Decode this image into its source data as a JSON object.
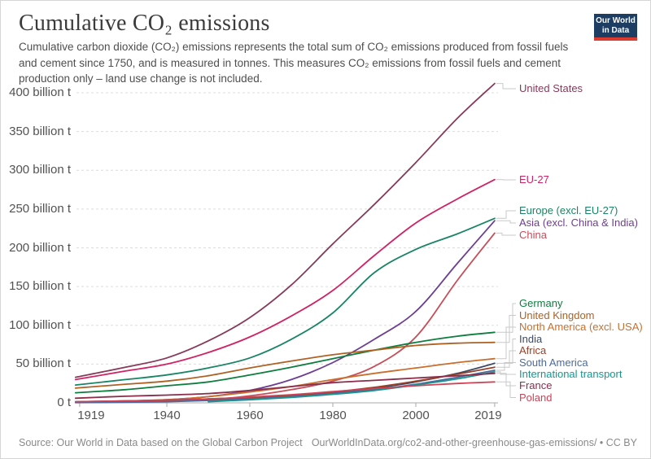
{
  "header": {
    "title": "Cumulative CO₂ emissions",
    "subtitle": "Cumulative carbon dioxide (CO₂) emissions represents the total sum of CO₂ emissions produced from fossil fuels and cement since 1750, and is measured in tonnes. This measures CO₂ emissions from fossil fuels and cement production only – land use change is not included.",
    "logo": {
      "line1": "Our World",
      "line2": "in Data",
      "bg": "#1d3d63",
      "accent": "#dc3b2f"
    }
  },
  "footer": {
    "source": "Source: Our World in Data based on the Global Carbon Project",
    "link": "OurWorldInData.org/co2-and-other-greenhouse-gas-emissions/ • CC BY"
  },
  "chart_data": {
    "type": "line",
    "title": "Cumulative CO₂ emissions",
    "unit": "billion tonnes",
    "xlim": [
      1918,
      2019
    ],
    "ylim": [
      0,
      420
    ],
    "grid": "horizontal-dashed",
    "legend_position": "right-edge-labels",
    "x_ticks": [
      1919,
      1940,
      1960,
      1980,
      2000,
      2019
    ],
    "y_ticks": [
      {
        "value": 0,
        "label": "0 t"
      },
      {
        "value": 50,
        "label": "50 billion t"
      },
      {
        "value": 100,
        "label": "100 billion t"
      },
      {
        "value": 150,
        "label": "150 billion t"
      },
      {
        "value": 200,
        "label": "200 billion t"
      },
      {
        "value": 250,
        "label": "250 billion t"
      },
      {
        "value": 300,
        "label": "300 billion t"
      },
      {
        "value": 350,
        "label": "350 billion t"
      },
      {
        "value": 400,
        "label": "400 billion t"
      }
    ],
    "series": [
      {
        "key": "us",
        "label": "United States",
        "color": "#873a59",
        "points": [
          [
            1918,
            33
          ],
          [
            1930,
            46
          ],
          [
            1940,
            58
          ],
          [
            1950,
            80
          ],
          [
            1960,
            110
          ],
          [
            1970,
            152
          ],
          [
            1980,
            205
          ],
          [
            1990,
            256
          ],
          [
            2000,
            310
          ],
          [
            2010,
            367
          ],
          [
            2019,
            412
          ]
        ]
      },
      {
        "key": "eu27",
        "label": "EU-27",
        "color": "#cf2364",
        "points": [
          [
            1918,
            30
          ],
          [
            1930,
            41
          ],
          [
            1940,
            50
          ],
          [
            1950,
            65
          ],
          [
            1960,
            85
          ],
          [
            1970,
            112
          ],
          [
            1980,
            145
          ],
          [
            1990,
            190
          ],
          [
            2000,
            232
          ],
          [
            2010,
            263
          ],
          [
            2019,
            288
          ]
        ]
      },
      {
        "key": "europe_ex",
        "label": "Europe (excl. EU-27)",
        "color": "#1a8564",
        "points": [
          [
            1918,
            23
          ],
          [
            1930,
            30
          ],
          [
            1940,
            36
          ],
          [
            1950,
            45
          ],
          [
            1960,
            58
          ],
          [
            1970,
            82
          ],
          [
            1980,
            116
          ],
          [
            1990,
            168
          ],
          [
            2000,
            198
          ],
          [
            2010,
            218
          ],
          [
            2019,
            238
          ]
        ]
      },
      {
        "key": "asia_ex",
        "label": "Asia (excl. China & India)",
        "color": "#6d3e91",
        "points": [
          [
            1918,
            1
          ],
          [
            1930,
            2
          ],
          [
            1940,
            4
          ],
          [
            1950,
            8
          ],
          [
            1960,
            16
          ],
          [
            1970,
            30
          ],
          [
            1980,
            52
          ],
          [
            1990,
            82
          ],
          [
            2000,
            118
          ],
          [
            2010,
            180
          ],
          [
            2019,
            235
          ]
        ]
      },
      {
        "key": "china",
        "label": "China",
        "color": "#c64e59",
        "points": [
          [
            1918,
            0.5
          ],
          [
            1930,
            1.5
          ],
          [
            1940,
            2.5
          ],
          [
            1950,
            4
          ],
          [
            1960,
            9
          ],
          [
            1970,
            17
          ],
          [
            1980,
            28
          ],
          [
            1990,
            47
          ],
          [
            2000,
            85
          ],
          [
            2010,
            158
          ],
          [
            2019,
            219
          ]
        ]
      },
      {
        "key": "germany",
        "label": "Germany",
        "color": "#0e7e3f",
        "points": [
          [
            1918,
            13
          ],
          [
            1930,
            17
          ],
          [
            1940,
            22
          ],
          [
            1950,
            27
          ],
          [
            1960,
            36
          ],
          [
            1970,
            46
          ],
          [
            1980,
            57
          ],
          [
            1990,
            68
          ],
          [
            2000,
            78
          ],
          [
            2010,
            86
          ],
          [
            2019,
            91
          ]
        ]
      },
      {
        "key": "uk",
        "label": "United Kingdom",
        "color": "#ad6224",
        "points": [
          [
            1918,
            19
          ],
          [
            1930,
            24
          ],
          [
            1940,
            28
          ],
          [
            1950,
            35
          ],
          [
            1960,
            45
          ],
          [
            1970,
            54
          ],
          [
            1980,
            62
          ],
          [
            1990,
            68
          ],
          [
            2000,
            74
          ],
          [
            2010,
            77
          ],
          [
            2019,
            78
          ]
        ]
      },
      {
        "key": "na_ex",
        "label": "North America (excl. USA)",
        "color": "#c96f2e",
        "points": [
          [
            1918,
            1
          ],
          [
            1930,
            2.5
          ],
          [
            1940,
            4
          ],
          [
            1950,
            8
          ],
          [
            1960,
            14
          ],
          [
            1970,
            21
          ],
          [
            1980,
            30
          ],
          [
            1990,
            38
          ],
          [
            2000,
            45
          ],
          [
            2010,
            52
          ],
          [
            2019,
            57
          ]
        ]
      },
      {
        "key": "india",
        "label": "India",
        "color": "#3d4a66",
        "points": [
          [
            1918,
            1.5
          ],
          [
            1930,
            2.5
          ],
          [
            1940,
            3.5
          ],
          [
            1950,
            5
          ],
          [
            1960,
            7
          ],
          [
            1970,
            9.5
          ],
          [
            1980,
            13
          ],
          [
            1990,
            19
          ],
          [
            2000,
            27
          ],
          [
            2010,
            38
          ],
          [
            2019,
            51
          ]
        ]
      },
      {
        "key": "africa",
        "label": "Africa",
        "color": "#9a4129",
        "points": [
          [
            1918,
            0.5
          ],
          [
            1930,
            1.2
          ],
          [
            1940,
            2
          ],
          [
            1950,
            3.5
          ],
          [
            1960,
            6
          ],
          [
            1970,
            9
          ],
          [
            1980,
            14
          ],
          [
            1990,
            20
          ],
          [
            2000,
            28
          ],
          [
            2010,
            37
          ],
          [
            2019,
            46
          ]
        ]
      },
      {
        "key": "samerica",
        "label": "South America",
        "color": "#4c6a9c",
        "points": [
          [
            1918,
            0.3
          ],
          [
            1930,
            0.8
          ],
          [
            1940,
            1.5
          ],
          [
            1950,
            3
          ],
          [
            1960,
            5
          ],
          [
            1970,
            8
          ],
          [
            1980,
            12
          ],
          [
            1990,
            17
          ],
          [
            2000,
            24
          ],
          [
            2010,
            33
          ],
          [
            2019,
            42
          ]
        ]
      },
      {
        "key": "intl",
        "label": "International transport",
        "color": "#179690",
        "points": [
          [
            1950,
            1.5
          ],
          [
            1960,
            4
          ],
          [
            1970,
            7
          ],
          [
            1980,
            11
          ],
          [
            1990,
            16
          ],
          [
            2000,
            23
          ],
          [
            2010,
            31
          ],
          [
            2019,
            40
          ]
        ]
      },
      {
        "key": "france",
        "label": "France",
        "color": "#8a2e4b",
        "points": [
          [
            1918,
            6
          ],
          [
            1930,
            8.5
          ],
          [
            1940,
            10
          ],
          [
            1950,
            12
          ],
          [
            1960,
            16
          ],
          [
            1970,
            21
          ],
          [
            1980,
            26
          ],
          [
            1990,
            29
          ],
          [
            2000,
            32
          ],
          [
            2010,
            35
          ],
          [
            2019,
            38
          ]
        ]
      },
      {
        "key": "poland",
        "label": "Poland",
        "color": "#ce4356",
        "points": [
          [
            1918,
            1.5
          ],
          [
            1930,
            2.5
          ],
          [
            1940,
            3.5
          ],
          [
            1950,
            5
          ],
          [
            1960,
            7.5
          ],
          [
            1970,
            10.5
          ],
          [
            1980,
            14.5
          ],
          [
            1990,
            18.5
          ],
          [
            2000,
            22
          ],
          [
            2010,
            25
          ],
          [
            2019,
            27
          ]
        ]
      }
    ]
  }
}
